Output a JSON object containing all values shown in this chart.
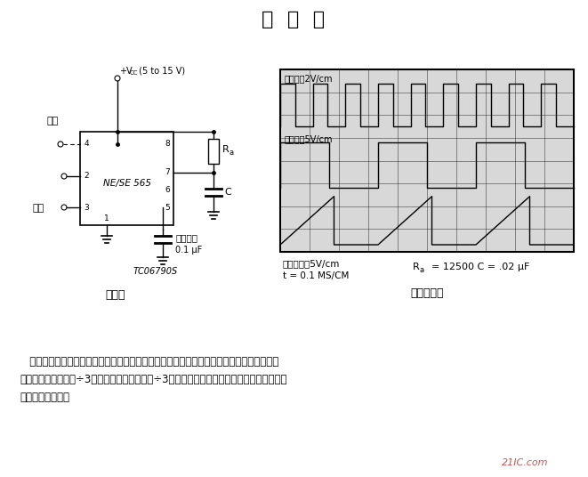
{
  "title": "分  频  器",
  "title_fontsize": 16,
  "bg_color": "#ffffff",
  "circuit_label": "原理图",
  "waveform_label": "预期的波形",
  "tc_label": "TC06790S",
  "input_label": "输入电压2V/cm",
  "output_label": "输出电压5V/cm",
  "cap_label": "电容器电压5V/cm",
  "time_label": "t = 0.1 MS/CM",
  "vcc_label": "+V",
  "vcc_sub": "CC",
  "vcc_rest": " (5 to 15 V)",
  "reset_label": "复位",
  "ctrl_label": "控制电压",
  "ctrl_val": "0.1 μF",
  "ic_label": "NE/SE 565",
  "output_arrow_label": "输出",
  "ra_label": "R",
  "ra_sub": "a",
  "c_label": "C",
  "params_main": "R",
  "params_sub": "a",
  "params_rest": " = 12500 C = .02 μF",
  "watermark": "21IC.com",
  "para1": "   如果输入频率是已知的，则可通过调节定时周期的长度，很容易地将定时器用作分频器。图",
  "para2": "中示出了定时器用作÷3分频器时的波形。这种÷3分频器利用了该电路在定时周期内不会被再",
  "para3": "次触发这一现象。"
}
